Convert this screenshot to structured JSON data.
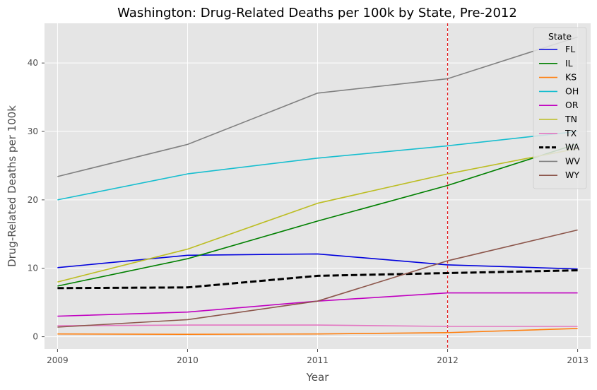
{
  "chart_data": {
    "type": "line",
    "title": "Washington: Drug-Related Deaths per 100k by State, Pre-2012",
    "xlabel": "Year",
    "ylabel": "Drug-Related Deaths per 100k",
    "x": [
      2009,
      2010,
      2011,
      2012,
      2013
    ],
    "xlim": [
      2008.9,
      2013.1
    ],
    "ylim": [
      -1.8,
      45.8
    ],
    "yticks": [
      0,
      10,
      20,
      30,
      40
    ],
    "grid": true,
    "legend": {
      "title": "State",
      "placement": "top-right"
    },
    "reference_line": {
      "x": 2012,
      "color": "#e41a1c",
      "style": "dashed"
    },
    "series": [
      {
        "name": "FL",
        "color": "#0000dd",
        "values": [
          10.1,
          11.9,
          12.1,
          10.5,
          9.9
        ]
      },
      {
        "name": "IL",
        "color": "#008000",
        "values": [
          7.4,
          11.4,
          16.9,
          22.1,
          28.2
        ]
      },
      {
        "name": "KS",
        "color": "#ff7f0e",
        "values": [
          0.4,
          0.35,
          0.4,
          0.6,
          1.2
        ]
      },
      {
        "name": "OH",
        "color": "#17becf",
        "values": [
          20.0,
          23.8,
          26.1,
          27.9,
          30.0
        ]
      },
      {
        "name": "OR",
        "color": "#c000c0",
        "values": [
          3.0,
          3.6,
          5.2,
          6.4,
          6.4
        ]
      },
      {
        "name": "TN",
        "color": "#bcbd22",
        "values": [
          8.0,
          12.8,
          19.5,
          23.8,
          27.5
        ]
      },
      {
        "name": "TX",
        "color": "#e377c2",
        "values": [
          1.6,
          1.7,
          1.7,
          1.5,
          1.5
        ]
      },
      {
        "name": "WA",
        "color": "#000000",
        "values": [
          7.1,
          7.2,
          8.9,
          9.3,
          9.7
        ],
        "style": "dashed-bold"
      },
      {
        "name": "WV",
        "color": "#808080",
        "values": [
          23.4,
          28.1,
          35.6,
          37.7,
          43.8
        ]
      },
      {
        "name": "WY",
        "color": "#8c564b",
        "values": [
          1.4,
          2.5,
          5.2,
          11.1,
          15.6
        ]
      }
    ]
  }
}
